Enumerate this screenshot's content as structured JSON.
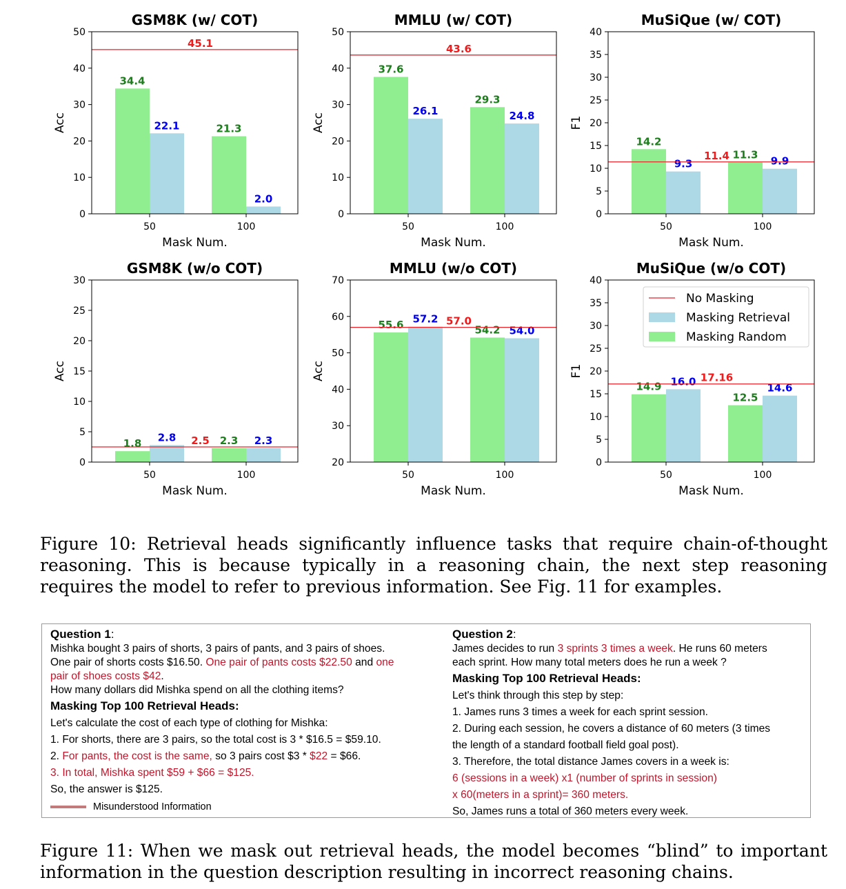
{
  "chart_data": [
    {
      "type": "bar",
      "title": "GSM8K (w/ COT)",
      "xlabel": "Mask Num.",
      "ylabel": "Acc",
      "categories": [
        "50",
        "100"
      ],
      "ylim": [
        0,
        50
      ],
      "yticks": [
        "0",
        "10",
        "20",
        "30",
        "40",
        "50"
      ],
      "series": [
        {
          "name": "Masking Random",
          "values": [
            34.4,
            21.3
          ],
          "labels": [
            "34.4",
            "21.3"
          ]
        },
        {
          "name": "Masking Retrieval",
          "values": [
            22.1,
            2.0
          ],
          "labels": [
            "22.1",
            "2.0"
          ]
        }
      ],
      "baseline": {
        "name": "No Masking",
        "value": 45.1,
        "label": "45.1"
      }
    },
    {
      "type": "bar",
      "title": "MMLU (w/ COT)",
      "xlabel": "Mask Num.",
      "ylabel": "Acc",
      "categories": [
        "50",
        "100"
      ],
      "ylim": [
        0,
        50
      ],
      "yticks": [
        "0",
        "10",
        "20",
        "30",
        "40",
        "50"
      ],
      "series": [
        {
          "name": "Masking Random",
          "values": [
            37.6,
            29.3
          ],
          "labels": [
            "37.6",
            "29.3"
          ]
        },
        {
          "name": "Masking Retrieval",
          "values": [
            26.1,
            24.8
          ],
          "labels": [
            "26.1",
            "24.8"
          ]
        }
      ],
      "baseline": {
        "name": "No Masking",
        "value": 43.6,
        "label": "43.6"
      }
    },
    {
      "type": "bar",
      "title": "MuSiQue (w/ COT)",
      "xlabel": "Mask Num.",
      "ylabel": "F1",
      "categories": [
        "50",
        "100"
      ],
      "ylim": [
        0,
        40
      ],
      "yticks": [
        "0",
        "5",
        "10",
        "15",
        "20",
        "25",
        "30",
        "35",
        "40"
      ],
      "series": [
        {
          "name": "Masking Random",
          "values": [
            14.2,
            11.3
          ],
          "labels": [
            "14.2",
            "11.3"
          ]
        },
        {
          "name": "Masking Retrieval",
          "values": [
            9.3,
            9.9
          ],
          "labels": [
            "9.3",
            "9.9"
          ]
        }
      ],
      "baseline": {
        "name": "No Masking",
        "value": 11.4,
        "label": "11.4"
      }
    },
    {
      "type": "bar",
      "title": "GSM8K (w/o COT)",
      "xlabel": "Mask Num.",
      "ylabel": "Acc",
      "categories": [
        "50",
        "100"
      ],
      "ylim": [
        0,
        30
      ],
      "yticks": [
        "0",
        "5",
        "10",
        "15",
        "20",
        "25",
        "30"
      ],
      "series": [
        {
          "name": "Masking Random",
          "values": [
            1.8,
            2.3
          ],
          "labels": [
            "1.8",
            "2.3"
          ]
        },
        {
          "name": "Masking Retrieval",
          "values": [
            2.8,
            2.3
          ],
          "labels": [
            "2.8",
            "2.3"
          ]
        }
      ],
      "baseline": {
        "name": "No Masking",
        "value": 2.5,
        "label": "2.5"
      }
    },
    {
      "type": "bar",
      "title": "MMLU (w/o COT)",
      "xlabel": "Mask Num.",
      "ylabel": "Acc",
      "categories": [
        "50",
        "100"
      ],
      "ylim": [
        20,
        70
      ],
      "yticks": [
        "20",
        "30",
        "40",
        "50",
        "60",
        "70"
      ],
      "series": [
        {
          "name": "Masking Random",
          "values": [
            55.6,
            54.2
          ],
          "labels": [
            "55.6",
            "54.2"
          ]
        },
        {
          "name": "Masking Retrieval",
          "values": [
            57.2,
            54.0
          ],
          "labels": [
            "57.2",
            "54.0"
          ]
        }
      ],
      "baseline": {
        "name": "No Masking",
        "value": 57.0,
        "label": "57.0"
      }
    },
    {
      "type": "bar",
      "title": "MuSiQue (w/o COT)",
      "xlabel": "Mask Num.",
      "ylabel": "F1",
      "categories": [
        "50",
        "100"
      ],
      "ylim": [
        0,
        40
      ],
      "yticks": [
        "0",
        "5",
        "10",
        "15",
        "20",
        "25",
        "30",
        "35",
        "40"
      ],
      "series": [
        {
          "name": "Masking Random",
          "values": [
            14.9,
            12.5
          ],
          "labels": [
            "14.9",
            "12.5"
          ]
        },
        {
          "name": "Masking Retrieval",
          "values": [
            16.0,
            14.6
          ],
          "labels": [
            "16.0",
            "14.6"
          ]
        }
      ],
      "baseline": {
        "name": "No Masking",
        "value": 17.16,
        "label": "17.16"
      },
      "legend": {
        "placement": "top-right",
        "entries": [
          "No Masking",
          "Masking Retrieval",
          "Masking Random"
        ]
      }
    }
  ],
  "colors": {
    "random_bar": "#90ee90",
    "retrieval_bar": "#add8e6",
    "baseline_line": "#e8232a",
    "random_label": "#1e7e1e",
    "retrieval_label": "#0000ee",
    "baseline_label": "#ee1c1c",
    "highlight_text": "#c0152a"
  },
  "figure10_caption": "Figure 10: Retrieval heads significantly influence tasks that require chain-of-thought reasoning. This is because typically in a reasoning chain, the next step reasoning requires the model to refer to previous information. See Fig. 11 for examples.",
  "figure11_caption": "Figure 11:  When we mask out retrieval heads, the model becomes “blind” to important information in the question description resulting in incorrect reasoning chains.",
  "example_box": {
    "q1": {
      "heading": "Question 1",
      "colon": ":",
      "line1": "Mishka bought 3 pairs of shorts, 3 pairs of pants, and 3 pairs of shoes.",
      "line2a": "One pair of shorts costs $16.50. ",
      "line2b": "One pair of pants costs $22.50",
      "line2c": " and ",
      "line2d": "one",
      "line3a": "pair of shoes costs $42",
      "line3b": ".",
      "line4": "How many dollars did Mishka spend on all the clothing items?",
      "mask_heading": "Masking Top 100 Retrieval Heads:",
      "a1": "Let's calculate the cost of each type of clothing for Mishka:",
      "a2": "1. For shorts, there are 3 pairs, so the total cost is 3 * $16.5 = $59.10.",
      "a3a": "2. ",
      "a3b": "For pants, the cost is the same,",
      "a3c": " so 3 pairs cost $3 * ",
      "a3d": "$22",
      "a3e": " = $66.",
      "a4": "3. In total, Mishka spent $59 + $66 = $125.",
      "a5": "So, the answer is $125.",
      "legend": "Misunderstood Information"
    },
    "q2": {
      "heading": "Question 2",
      "colon": ":",
      "line1a": "James decides to run ",
      "line1b": "3 sprints 3 times a week",
      "line1c": ". He runs 60 meters",
      "line2": "each sprint. How many total meters does he run a week ?",
      "mask_heading": "Masking Top 100 Retrieval Heads:",
      "a1": "Let's think through this step by step:",
      "a2": "1. James runs 3 times a week for each sprint session.",
      "a3": "2. During each session, he covers a distance of 60 meters (3 times",
      "a4": "the length of a standard football field goal post).",
      "a5": "3. Therefore, the total distance James covers in a week is:",
      "a6": "6 (sessions in a week) x1 (number of sprints in session)",
      "a7": "x 60(meters in a sprint)= 360 meters.",
      "a8": "So, James runs a total of 360 meters every week."
    }
  }
}
